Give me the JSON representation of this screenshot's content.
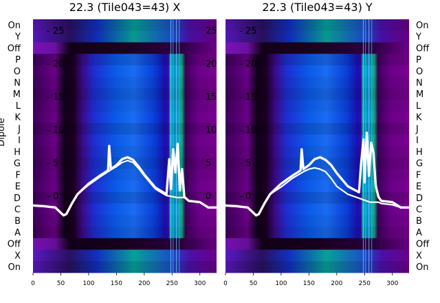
{
  "chart_data": [
    {
      "type": "heatmap",
      "title": "22.3 (Tile043=43) X",
      "xlabel": "",
      "ylabel": "Dipole",
      "xlim": [
        0,
        330
      ],
      "x_ticks": [
        "0",
        "50",
        "100",
        "150",
        "200",
        "250",
        "300"
      ],
      "row_labels": [
        "On",
        "Y",
        "Off",
        "P",
        "O",
        "N",
        "M",
        "L",
        "K",
        "J",
        "I",
        "H",
        "G",
        "F",
        "E",
        "D",
        "C",
        "B",
        "A",
        "Off",
        "X",
        "On"
      ],
      "overlay_ticks": [
        "- 25",
        "- 20",
        "- 15",
        "- 10",
        "- 5",
        "- 0"
      ],
      "overlay_tick_values": [
        25,
        20,
        15,
        10,
        5,
        0
      ],
      "overlay_right_ticks": [
        "25",
        "20",
        "15",
        "10",
        "5",
        "0"
      ],
      "colormap": [
        "#1a0020",
        "#3d0058",
        "#6a008a",
        "#4a10b0",
        "#1a3cd8",
        "#0a78e0",
        "#00a0a0",
        "#10b070"
      ],
      "overlay_curves": [
        {
          "x": [
            0,
            20,
            40,
            50,
            55,
            60,
            70,
            80,
            100,
            120,
            135,
            137,
            140,
            150,
            160,
            170,
            180,
            190,
            200,
            220,
            240,
            245,
            248,
            252,
            256,
            260,
            264,
            268,
            272,
            280,
            300,
            315,
            330
          ],
          "y": [
            -1.5,
            -1.6,
            -1.8,
            -2.6,
            -3.0,
            -2.8,
            -1.2,
            0.2,
            1.8,
            3.0,
            3.8,
            7.5,
            4.0,
            4.6,
            5.5,
            5.8,
            5.4,
            4.4,
            3.2,
            1.2,
            0.2,
            5.5,
            1.0,
            7.0,
            3.5,
            7.8,
            0.8,
            4.0,
            -0.2,
            -0.8,
            -1.0,
            -1.8,
            -1.8
          ]
        },
        {
          "x": [
            0,
            40,
            50,
            55,
            60,
            70,
            80,
            100,
            120,
            140,
            150,
            160,
            170,
            180,
            190,
            200,
            220,
            240,
            260,
            272,
            280,
            300,
            315,
            330
          ],
          "y": [
            -1.5,
            -1.8,
            -2.6,
            -3.0,
            -2.8,
            -1.2,
            0.2,
            1.6,
            2.8,
            3.9,
            4.4,
            5.0,
            5.3,
            5.0,
            4.1,
            3.0,
            1.0,
            0.0,
            -0.3,
            -0.3,
            -0.8,
            -1.0,
            -1.8,
            -1.8
          ]
        }
      ]
    },
    {
      "type": "heatmap",
      "title": "22.3 (Tile043=43) Y",
      "xlabel": "",
      "ylabel": "",
      "xlim": [
        0,
        330
      ],
      "x_ticks": [
        "0",
        "50",
        "100",
        "150",
        "200",
        "250",
        "300"
      ],
      "row_labels": [
        "On",
        "Y",
        "Off",
        "P",
        "O",
        "N",
        "M",
        "L",
        "K",
        "J",
        "I",
        "H",
        "G",
        "F",
        "E",
        "D",
        "C",
        "B",
        "A",
        "Off",
        "X",
        "On"
      ],
      "overlay_ticks": [
        "- 25",
        "- 20",
        "- 15",
        "- 10",
        "- 5",
        "- 0"
      ],
      "overlay_tick_values": [
        25,
        20,
        15,
        10,
        5,
        0
      ],
      "colormap": [
        "#1a0020",
        "#3d0058",
        "#6a008a",
        "#4a10b0",
        "#1a3cd8",
        "#0a78e0",
        "#00a0a0",
        "#10b070"
      ],
      "overlay_curves": [
        {
          "x": [
            0,
            20,
            40,
            50,
            55,
            60,
            70,
            80,
            100,
            120,
            135,
            137,
            140,
            150,
            160,
            170,
            180,
            190,
            200,
            220,
            240,
            244,
            248,
            250,
            254,
            258,
            262,
            266,
            270,
            275,
            280,
            300,
            315,
            330
          ],
          "y": [
            -1.5,
            -1.6,
            -1.8,
            -2.6,
            -3.0,
            -2.8,
            -1.2,
            0.2,
            1.8,
            3.0,
            3.8,
            7.0,
            4.0,
            4.6,
            5.5,
            5.8,
            5.4,
            4.6,
            3.4,
            1.4,
            0.5,
            5.0,
            8.5,
            2.0,
            9.5,
            3.0,
            8.0,
            6.5,
            1.5,
            -0.2,
            -0.8,
            -1.0,
            -1.8,
            -1.8
          ]
        },
        {
          "x": [
            0,
            40,
            50,
            55,
            60,
            70,
            80,
            100,
            120,
            140,
            150,
            160,
            170,
            180,
            190,
            200,
            220,
            240,
            260,
            275,
            280,
            300,
            315,
            330
          ],
          "y": [
            -1.5,
            -1.8,
            -2.6,
            -3.0,
            -2.8,
            -1.2,
            0.2,
            1.3,
            2.6,
            3.6,
            4.0,
            4.2,
            4.0,
            3.6,
            2.6,
            1.4,
            0.2,
            -0.4,
            -1.0,
            -1.0,
            -1.2,
            -1.4,
            -1.8,
            -1.8
          ]
        }
      ]
    }
  ]
}
